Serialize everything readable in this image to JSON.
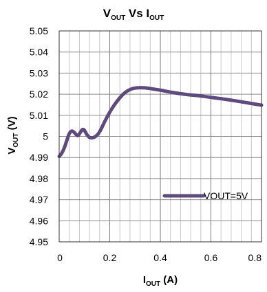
{
  "chart_data": {
    "type": "line",
    "title": {
      "main": "V",
      "main_sub": "OUT",
      "mid": " Vs ",
      "second": "I",
      "second_sub": "OUT"
    },
    "xlabel": {
      "main": "I",
      "sub": "OUT",
      "rest": " (A)"
    },
    "ylabel": {
      "main": "V",
      "sub": "OUT",
      "rest": " (V)"
    },
    "xlim": [
      0,
      0.8
    ],
    "ylim": [
      4.95,
      5.05
    ],
    "x_ticks": [
      0,
      0.2,
      0.4,
      0.6,
      0.8
    ],
    "x_tick_labels": [
      "0",
      "0.2",
      "0.4",
      "0.6",
      "0.8"
    ],
    "y_ticks": [
      4.95,
      4.96,
      4.97,
      4.98,
      4.99,
      5.0,
      5.01,
      5.02,
      5.03,
      5.04,
      5.05
    ],
    "y_tick_labels": [
      "4.95",
      "4.96",
      "4.97",
      "4.98",
      "4.99",
      "5",
      "5.01",
      "5.02",
      "5.03",
      "5.04",
      "5.05"
    ],
    "x_minor_ticks": [
      0.04,
      0.08,
      0.12,
      0.16,
      0.24,
      0.28,
      0.32,
      0.36,
      0.44,
      0.48,
      0.52,
      0.56,
      0.64,
      0.68,
      0.72,
      0.76
    ],
    "grid": true,
    "legend_position": "lower-right",
    "series": [
      {
        "name": "VOUT=5V",
        "color": "#5e4a7e",
        "x": [
          0.0,
          0.01,
          0.02,
          0.03,
          0.04,
          0.05,
          0.06,
          0.07,
          0.075,
          0.08,
          0.09,
          0.095,
          0.1,
          0.11,
          0.12,
          0.13,
          0.14,
          0.15,
          0.16,
          0.17,
          0.18,
          0.2,
          0.22,
          0.24,
          0.26,
          0.28,
          0.3,
          0.32,
          0.34,
          0.36,
          0.38,
          0.4,
          0.45,
          0.5,
          0.55,
          0.6,
          0.65,
          0.7,
          0.75,
          0.8
        ],
        "y": [
          4.9905,
          4.992,
          4.9945,
          4.998,
          5.0013,
          5.0025,
          5.0018,
          5.0005,
          5.0004,
          5.0012,
          5.003,
          5.0033,
          5.0028,
          5.0008,
          4.9995,
          4.9993,
          4.9997,
          5.0006,
          5.0022,
          5.0045,
          5.007,
          5.0115,
          5.0152,
          5.0183,
          5.0207,
          5.0222,
          5.0229,
          5.0231,
          5.023,
          5.0227,
          5.0223,
          5.0219,
          5.0208,
          5.0199,
          5.0193,
          5.0185,
          5.0177,
          5.0168,
          5.0158,
          5.0148
        ]
      }
    ]
  }
}
